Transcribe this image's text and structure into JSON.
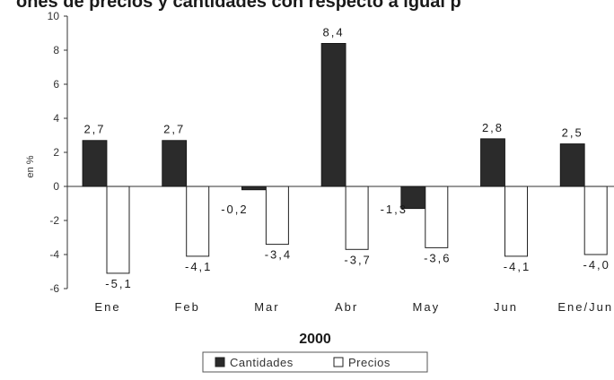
{
  "chart_data": {
    "type": "bar",
    "title": "ones de precios y cantidades con respecto a igual p",
    "xlabel": "2000",
    "ylabel": "en %",
    "ylim": [
      -6,
      10
    ],
    "yticks": [
      10,
      8,
      6,
      4,
      2,
      0,
      -2,
      -4,
      -6
    ],
    "categories": [
      "Ene",
      "Feb",
      "Mar",
      "Abr",
      "May",
      "Jun",
      "Ene/Jun"
    ],
    "series": [
      {
        "name": "Cantidades",
        "color": "#2b2b2b",
        "values": [
          2.7,
          2.7,
          -0.2,
          8.4,
          -1.3,
          2.8,
          2.5
        ],
        "labels": [
          "2,7",
          "2,7",
          "-0,2",
          "8,4",
          "-1,3",
          "2,8",
          "2,5"
        ]
      },
      {
        "name": "Precios",
        "color": "#ffffff",
        "values": [
          -5.1,
          -4.1,
          -3.4,
          -3.7,
          -3.6,
          -4.1,
          -4.0
        ],
        "labels": [
          "-5,1",
          "-4,1",
          "-3,4",
          "-3,7",
          "-3,6",
          "-4,1",
          "-4,0"
        ]
      }
    ],
    "grid": false,
    "legend_position": "bottom-center"
  }
}
